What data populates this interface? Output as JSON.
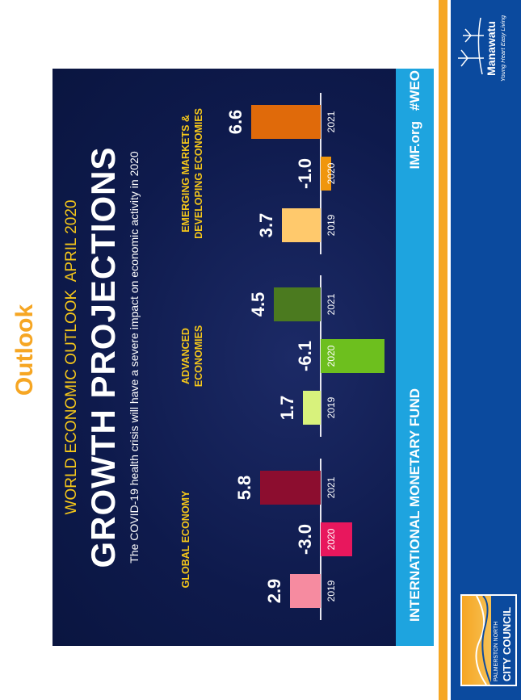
{
  "slide_title": "Outlook",
  "chart_data": {
    "type": "bar",
    "supertitle": "WORLD ECONOMIC OUTLOOK  APRIL 2020",
    "title": "GROWTH PROJECTIONS",
    "subtitle": "The COVID-19 health crisis will have a severe impact on economic activity in 2020",
    "groups": [
      {
        "name": "GLOBAL ECONOMY",
        "categories": [
          "2019",
          "2020",
          "2021"
        ],
        "values": [
          2.9,
          -3.0,
          5.8
        ],
        "value_labels": [
          "2.9",
          "-3.0",
          "5.8"
        ],
        "colors": [
          "#f68ba0",
          "#e8175d",
          "#8c0d2f"
        ]
      },
      {
        "name": "ADVANCED ECONOMIES",
        "categories": [
          "2019",
          "2020",
          "2021"
        ],
        "values": [
          1.7,
          -6.1,
          4.5
        ],
        "value_labels": [
          "1.7",
          "-6.1",
          "4.5"
        ],
        "colors": [
          "#d8f27c",
          "#6dbf1e",
          "#4b7a1f"
        ]
      },
      {
        "name": "EMERGING MARKETS & DEVELOPING ECONOMIES",
        "categories": [
          "2019",
          "2020",
          "2021"
        ],
        "values": [
          3.7,
          -1.0,
          6.6
        ],
        "value_labels": [
          "3.7",
          "-1.0",
          "6.6"
        ],
        "colors": [
          "#ffc96c",
          "#f0960c",
          "#e06a0a"
        ]
      }
    ],
    "source": "INTERNATIONAL MONETARY FUND",
    "site": "IMF.org",
    "hashtag": "#WEO"
  },
  "footer": {
    "council_line1": "PALMERSTON NORTH",
    "council_line2": "CITY COUNCIL",
    "brand": "Manawatu",
    "tagline": "Young Heart Easy Living"
  }
}
